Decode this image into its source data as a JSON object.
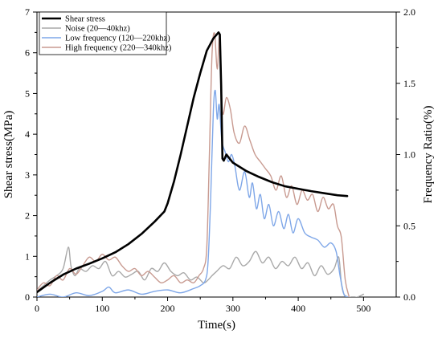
{
  "chart_data": {
    "type": "line",
    "xlabel": "Time(s)",
    "ylabel_left": "Shear stress(MPa)",
    "ylabel_right": "Frequency Ratio(%)",
    "xlim": [
      0,
      550
    ],
    "ylim_left": [
      0,
      7
    ],
    "ylim_right": [
      0,
      2.0
    ],
    "xticks": [
      0,
      100,
      200,
      300,
      400,
      500
    ],
    "yticks_left": [
      0,
      1,
      2,
      3,
      4,
      5,
      6,
      7
    ],
    "yticks_right": [
      0.0,
      0.5,
      1.0,
      1.5,
      2.0
    ],
    "yticks_right_labels": [
      "0.0",
      "0.5",
      "1.0",
      "1.5",
      "2.0"
    ],
    "grid": false,
    "legend_position": "top-left",
    "series": [
      {
        "name": "Shear stress",
        "axis": "left",
        "color": "#000000",
        "width": 2.6,
        "x": [
          0,
          20,
          40,
          60,
          80,
          100,
          120,
          140,
          160,
          180,
          195,
          200,
          210,
          220,
          230,
          240,
          250,
          260,
          270,
          278,
          280,
          282,
          284,
          286,
          290,
          300,
          320,
          340,
          360,
          380,
          400,
          420,
          440,
          460,
          475
        ],
        "y": [
          0.12,
          0.35,
          0.55,
          0.7,
          0.82,
          0.95,
          1.1,
          1.3,
          1.55,
          1.85,
          2.1,
          2.3,
          2.85,
          3.5,
          4.2,
          4.9,
          5.5,
          6.05,
          6.35,
          6.5,
          6.45,
          5.2,
          3.4,
          3.35,
          3.5,
          3.3,
          3.1,
          2.95,
          2.82,
          2.72,
          2.66,
          2.6,
          2.55,
          2.5,
          2.48
        ]
      },
      {
        "name": "Noise (20—40khz)",
        "axis": "right",
        "color": "#a9a9a9",
        "width": 1.4,
        "x": [
          0,
          10,
          20,
          30,
          40,
          48,
          52,
          58,
          65,
          75,
          85,
          95,
          105,
          115,
          125,
          135,
          145,
          155,
          165,
          175,
          185,
          195,
          205,
          215,
          225,
          235,
          245,
          255,
          262,
          268,
          275,
          285,
          295,
          305,
          315,
          325,
          335,
          345,
          355,
          365,
          375,
          385,
          395,
          405,
          415,
          425,
          435,
          445,
          455,
          462,
          466,
          470,
          478,
          490,
          500
        ],
        "y": [
          0.04,
          0.08,
          0.12,
          0.15,
          0.2,
          0.35,
          0.22,
          0.15,
          0.2,
          0.18,
          0.22,
          0.2,
          0.25,
          0.15,
          0.18,
          0.14,
          0.16,
          0.18,
          0.12,
          0.2,
          0.18,
          0.24,
          0.18,
          0.15,
          0.17,
          0.12,
          0.14,
          0.1,
          0.12,
          0.15,
          0.18,
          0.22,
          0.2,
          0.28,
          0.22,
          0.25,
          0.32,
          0.24,
          0.28,
          0.2,
          0.25,
          0.22,
          0.28,
          0.2,
          0.24,
          0.15,
          0.22,
          0.16,
          0.2,
          0.28,
          0.1,
          0.02,
          0.0,
          0.0,
          0.02
        ]
      },
      {
        "name": "Low frequency (120—220khz)",
        "axis": "right",
        "color": "#7fa7e8",
        "width": 1.4,
        "x": [
          0,
          20,
          40,
          60,
          80,
          100,
          110,
          120,
          140,
          160,
          180,
          200,
          220,
          240,
          250,
          258,
          262,
          266,
          270,
          273,
          276,
          279,
          283,
          288,
          293,
          298,
          303,
          310,
          318,
          325,
          330,
          336,
          342,
          348,
          355,
          362,
          370,
          378,
          385,
          392,
          400,
          410,
          420,
          430,
          440,
          450,
          458,
          464,
          470,
          476
        ],
        "y": [
          0.0,
          0.02,
          0.0,
          0.03,
          0.01,
          0.04,
          0.07,
          0.03,
          0.05,
          0.02,
          0.04,
          0.05,
          0.03,
          0.06,
          0.08,
          0.12,
          0.25,
          0.7,
          1.3,
          1.45,
          1.25,
          1.35,
          1.1,
          1.02,
          0.95,
          1.0,
          0.92,
          0.75,
          0.88,
          0.7,
          0.8,
          0.62,
          0.72,
          0.55,
          0.65,
          0.5,
          0.6,
          0.48,
          0.58,
          0.45,
          0.55,
          0.45,
          0.42,
          0.4,
          0.35,
          0.38,
          0.32,
          0.15,
          0.02,
          0.0
        ]
      },
      {
        "name": "High frequency (220—340khz)",
        "axis": "right",
        "color": "#c89a90",
        "width": 1.4,
        "x": [
          0,
          10,
          20,
          30,
          40,
          50,
          60,
          70,
          80,
          90,
          100,
          110,
          120,
          130,
          140,
          150,
          160,
          170,
          180,
          190,
          200,
          210,
          220,
          230,
          240,
          248,
          255,
          260,
          264,
          268,
          272,
          276,
          280,
          284,
          290,
          296,
          302,
          310,
          318,
          326,
          334,
          342,
          350,
          358,
          366,
          374,
          382,
          390,
          398,
          406,
          414,
          422,
          430,
          438,
          446,
          454,
          460,
          466,
          472,
          478
        ],
        "y": [
          0.05,
          0.1,
          0.08,
          0.15,
          0.12,
          0.2,
          0.16,
          0.22,
          0.28,
          0.25,
          0.3,
          0.26,
          0.28,
          0.22,
          0.18,
          0.2,
          0.15,
          0.18,
          0.14,
          0.1,
          0.12,
          0.15,
          0.1,
          0.12,
          0.1,
          0.15,
          0.2,
          0.35,
          1.0,
          1.7,
          1.85,
          1.6,
          1.84,
          1.3,
          1.4,
          1.32,
          1.15,
          1.08,
          1.2,
          1.1,
          1.0,
          0.95,
          0.9,
          0.85,
          0.75,
          0.85,
          0.7,
          0.78,
          0.65,
          0.75,
          0.68,
          0.72,
          0.6,
          0.7,
          0.62,
          0.65,
          0.5,
          0.42,
          0.12,
          0.0
        ]
      }
    ]
  }
}
